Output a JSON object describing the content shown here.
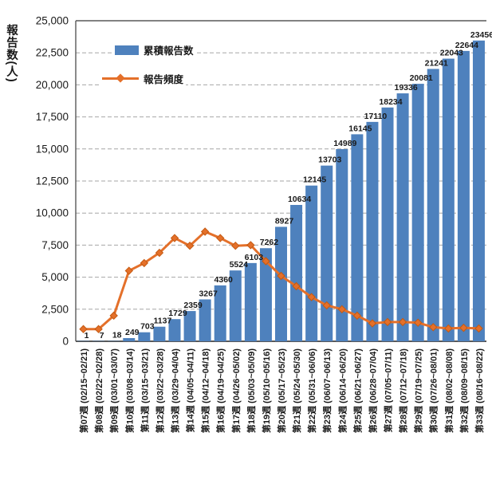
{
  "chart_data": {
    "type": "bar+line",
    "title": "",
    "ylabel": "報告数(人)",
    "xlabel": "",
    "ylim": [
      0,
      25000
    ],
    "ytick_step": 2500,
    "ytick_labels": [
      "0",
      "2,500",
      "5,000",
      "7,500",
      "10,000",
      "12,500",
      "15,000",
      "17,500",
      "20,000",
      "22,500",
      "25,000"
    ],
    "grid": "horizontal-dashed",
    "legend_position": "top-left-inside",
    "categories": [
      "第07週 (02/15~02/21)",
      "第08週 (02/22~02/28)",
      "第09週 (03/01~03/07)",
      "第10週 (03/08~03/14)",
      "第11週 (03/15~03/21)",
      "第12週 (03/22~03/28)",
      "第13週 (03/29~04/04)",
      "第14週 (04/05~04/11)",
      "第15週 (04/12~04/18)",
      "第16週 (04/19~04/25)",
      "第17週 (04/26~05/02)",
      "第18週 (05/03~05/09)",
      "第19週 (05/10~05/16)",
      "第20週 (05/17~05/23)",
      "第21週 (05/24~05/30)",
      "第22週 (05/31~06/06)",
      "第23週 (06/07~06/13)",
      "第24週 (06/14~06/20)",
      "第25週 (06/21~06/27)",
      "第26週 (06/28~07/04)",
      "第27週 (07/05~07/11)",
      "第28週 (07/12~07/18)",
      "第29週 (07/19~07/25)",
      "第30週 (07/26~08/01)",
      "第31週 (08/02~08/08)",
      "第32週 (08/09~08/15)",
      "第33週 (08/16~08/22)"
    ],
    "series": [
      {
        "name": "累積報告数",
        "type": "bar",
        "color": "#4E81BD",
        "data_labels_shown": true,
        "values": [
          1,
          7,
          18,
          249,
          703,
          1137,
          1729,
          2359,
          3267,
          4360,
          5524,
          6103,
          7262,
          8927,
          10634,
          12145,
          13703,
          14989,
          16145,
          17110,
          18234,
          19336,
          20081,
          21241,
          22043,
          22644,
          23456
        ]
      },
      {
        "name": "報告頻度",
        "type": "line",
        "color": "#E4702A",
        "marker": "diamond",
        "data_labels_shown": false,
        "values": [
          950,
          950,
          2000,
          5500,
          6100,
          6900,
          8050,
          7450,
          8550,
          8050,
          7450,
          7500,
          6250,
          5100,
          4300,
          3450,
          2800,
          2500,
          2000,
          1400,
          1500,
          1500,
          1450,
          1100,
          1000,
          1050,
          1000
        ]
      }
    ]
  },
  "colors": {
    "bar": "#4E81BD",
    "line": "#E4702A",
    "gridline": "#A6A6A6",
    "axis": "#595959",
    "text": "#1a1a1a"
  }
}
